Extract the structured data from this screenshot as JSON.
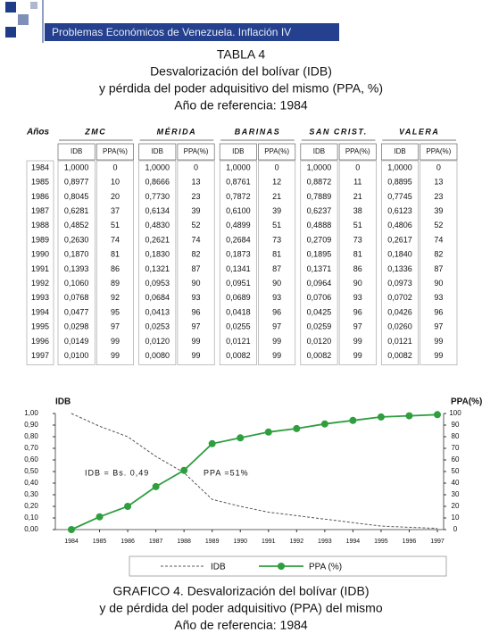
{
  "header": {
    "title": "Problemas Económicos de Venezuela.  Inflación IV"
  },
  "title_lines": [
    "TABLA 4",
    "Desvalorización del bolívar (IDB)",
    "y pérdida del poder adquisitivo del mismo (PPA, %)",
    "Año de referencia: 1984"
  ],
  "table": {
    "year_header": "Años",
    "cities": [
      "ZMC",
      "MÉRIDA",
      "BARINAS",
      "SAN CRIST.",
      "VALERA"
    ],
    "subheaders": [
      "IDB",
      "PPA(%)"
    ],
    "rows": [
      [
        "1984",
        "1,0000",
        "0",
        "1,0000",
        "0",
        "1,0000",
        "0",
        "1,0000",
        "0",
        "1,0000",
        "0"
      ],
      [
        "1985",
        "0,8977",
        "10",
        "0,8666",
        "13",
        "0,8761",
        "12",
        "0,8872",
        "11",
        "0,8895",
        "13"
      ],
      [
        "1986",
        "0,8045",
        "20",
        "0,7730",
        "23",
        "0,7872",
        "21",
        "0,7889",
        "21",
        "0,7745",
        "23"
      ],
      [
        "1987",
        "0,6281",
        "37",
        "0,6134",
        "39",
        "0,6100",
        "39",
        "0,6237",
        "38",
        "0,6123",
        "39"
      ],
      [
        "1988",
        "0,4852",
        "51",
        "0,4830",
        "52",
        "0,4899",
        "51",
        "0,4888",
        "51",
        "0,4806",
        "52"
      ],
      [
        "1989",
        "0,2630",
        "74",
        "0,2621",
        "74",
        "0,2684",
        "73",
        "0,2709",
        "73",
        "0,2617",
        "74"
      ],
      [
        "1990",
        "0,1870",
        "81",
        "0,1830",
        "82",
        "0,1873",
        "81",
        "0,1895",
        "81",
        "0,1840",
        "82"
      ],
      [
        "1991",
        "0,1393",
        "86",
        "0,1321",
        "87",
        "0,1341",
        "87",
        "0,1371",
        "86",
        "0,1336",
        "87"
      ],
      [
        "1992",
        "0,1060",
        "89",
        "0,0953",
        "90",
        "0,0951",
        "90",
        "0,0964",
        "90",
        "0,0973",
        "90"
      ],
      [
        "1993",
        "0,0768",
        "92",
        "0,0684",
        "93",
        "0,0689",
        "93",
        "0,0706",
        "93",
        "0,0702",
        "93"
      ],
      [
        "1994",
        "0,0477",
        "95",
        "0,0413",
        "96",
        "0,0418",
        "96",
        "0,0425",
        "96",
        "0,0426",
        "96"
      ],
      [
        "1995",
        "0,0298",
        "97",
        "0,0253",
        "97",
        "0,0255",
        "97",
        "0,0259",
        "97",
        "0,0260",
        "97"
      ],
      [
        "1996",
        "0,0149",
        "99",
        "0,0120",
        "99",
        "0,0121",
        "99",
        "0,0120",
        "99",
        "0,0121",
        "99"
      ],
      [
        "1997",
        "0,0100",
        "99",
        "0,0080",
        "99",
        "0,0082",
        "99",
        "0,0082",
        "99",
        "0,0082",
        "99"
      ]
    ]
  },
  "chart_data": {
    "type": "line",
    "y_label": "IDB",
    "y2_label": "PPA(%)",
    "categories": [
      "1984",
      "1985",
      "1986",
      "1987",
      "1988",
      "1989",
      "1990",
      "1991",
      "1992",
      "1993",
      "1994",
      "1995",
      "1996",
      "1997"
    ],
    "series": [
      {
        "name": "IDB",
        "color": "#555555",
        "values": [
          1.0,
          0.89,
          0.8,
          0.63,
          0.49,
          0.26,
          0.2,
          0.15,
          0.12,
          0.09,
          0.06,
          0.03,
          0.02,
          0.01
        ]
      },
      {
        "name": "PPA (%)",
        "color": "#2e9e3e",
        "axis": "y2",
        "values": [
          0,
          11,
          20,
          37,
          51,
          74,
          79,
          84,
          87,
          91,
          94,
          97,
          98,
          99
        ]
      }
    ],
    "ylim": [
      0,
      1
    ],
    "yticks": [
      {
        "value": 0,
        "label": "0,00"
      },
      {
        "value": 0.1,
        "label": "0,10"
      },
      {
        "value": 0.2,
        "label": "0,20"
      },
      {
        "value": 0.3,
        "label": "0,30"
      },
      {
        "value": 0.4,
        "label": "0,40"
      },
      {
        "value": 0.5,
        "label": "0,50"
      },
      {
        "value": 0.6,
        "label": "0,60"
      },
      {
        "value": 0.7,
        "label": "0,70"
      },
      {
        "value": 0.8,
        "label": "0,80"
      },
      {
        "value": 0.9,
        "label": "0,90"
      },
      {
        "value": 1,
        "label": "1,00"
      }
    ],
    "y2lim": [
      0,
      100
    ],
    "y2ticks": [
      0,
      10,
      20,
      30,
      40,
      50,
      60,
      70,
      80,
      90,
      100
    ],
    "annotations": [
      "IDB = Bs. 0,49",
      "PPA =51%"
    ]
  },
  "caption_lines": [
    "GRAFICO 4. Desvalorización del bolívar (IDB)",
    "y de pérdida del poder adquisitivo (PPA) del mismo",
    "Año de referencia: 1984"
  ]
}
